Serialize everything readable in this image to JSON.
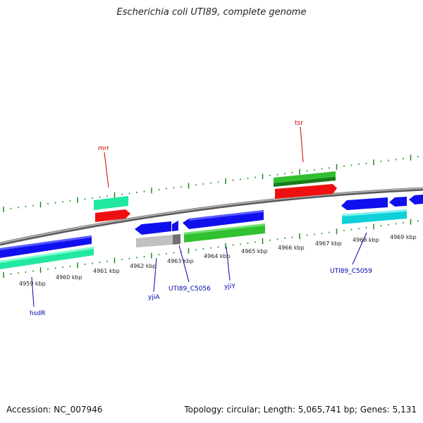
{
  "title": "Escherichia coli UTI89, complete genome",
  "footer": {
    "accession": "Accession: NC_007946",
    "summary": "Topology: circular; Length: 5,065,741 bp; Genes: 5,131"
  },
  "colors": {
    "backbone": "#8a8a8a",
    "ticks": "#1a8a1a",
    "gene_label_top": "#cc0000",
    "gene_label_bottom": "#0000aa",
    "blue_cds": "#1010ee",
    "mint_cds": "#20e8a0",
    "red_cds": "#ee1010",
    "green_cds": "#30c030",
    "cyan_cds": "#10d0d8",
    "gray_cds": "#c0c0c0"
  },
  "kbp_labels": [
    "4959 kbp",
    "4960 kbp",
    "4961 kbp",
    "4962 kbp",
    "4963 kbp",
    "4964 kbp",
    "4965 kbp",
    "4966 kbp",
    "4967 kbp",
    "4968 kbp",
    "4969 kbp"
  ],
  "gene_labels": {
    "top": [
      "mrr",
      "tsr"
    ],
    "bottom": [
      "hsdR",
      "yjiA",
      "UTI89_C5056",
      "yjiY",
      "UTI89_C5059"
    ]
  }
}
